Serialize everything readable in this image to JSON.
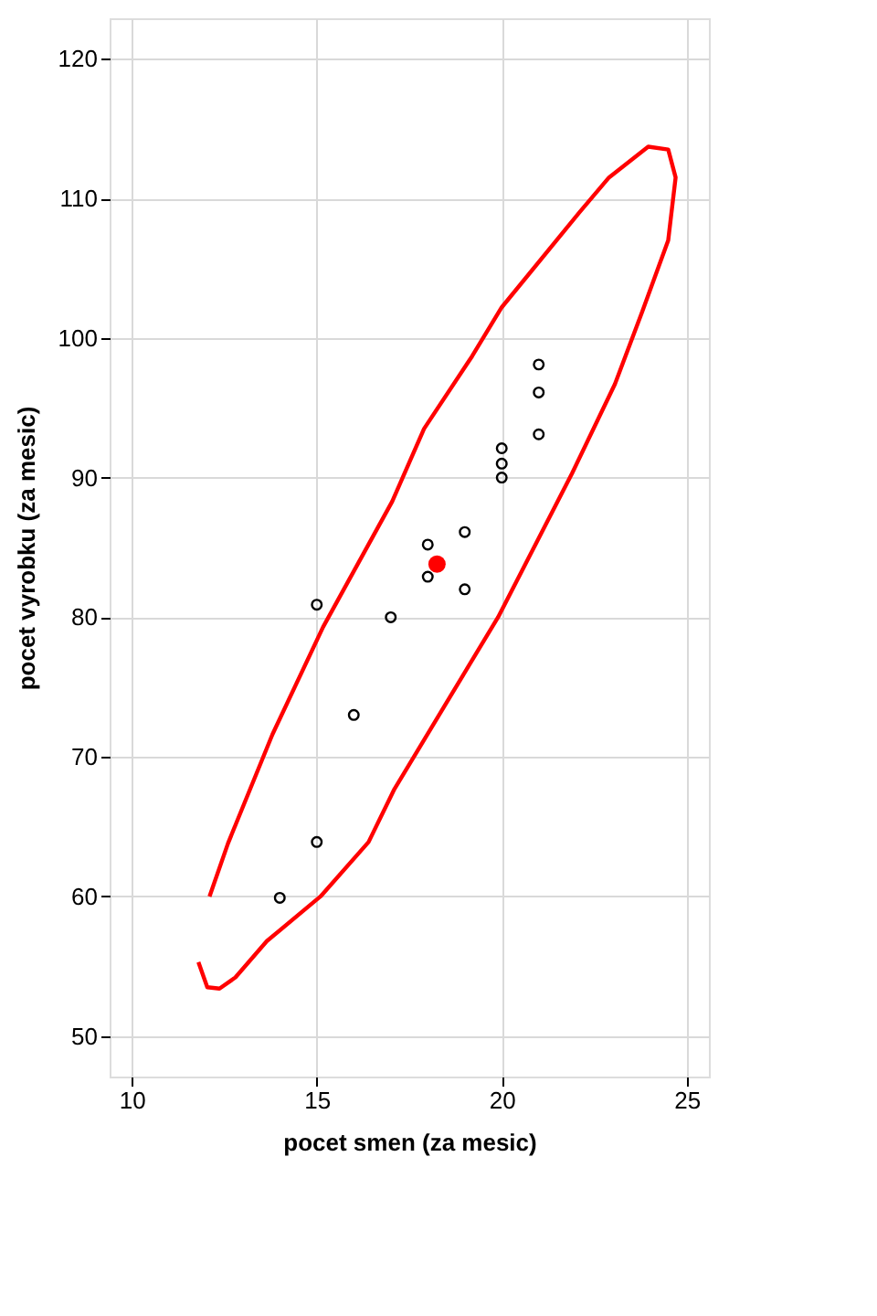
{
  "chart_data": {
    "type": "scatter",
    "xlabel": "pocet smen (za mesic)",
    "ylabel": "pocet vyrobku (za mesic)",
    "xlim": [
      9.4,
      25.6
    ],
    "ylim": [
      47.1,
      122.9
    ],
    "xticks": [
      10,
      15,
      20,
      25
    ],
    "yticks": [
      50,
      60,
      70,
      80,
      90,
      100,
      110,
      120
    ],
    "grid": true,
    "marker": "circle",
    "series": [
      {
        "type": "scatter",
        "color": "#000000",
        "x": [
          21,
          21,
          21,
          20,
          20,
          20,
          19,
          19,
          18,
          18,
          17,
          16,
          15,
          15,
          14
        ],
        "values": [
          98.1,
          96.1,
          93.1,
          92.1,
          91.0,
          90.0,
          86.1,
          82.0,
          85.2,
          82.9,
          80.0,
          73.0,
          80.9,
          63.9,
          59.9
        ]
      },
      {
        "type": "scatter",
        "color": "#ff0000",
        "x": [
          18.25
        ],
        "values": [
          83.8
        ]
      },
      {
        "type": "line",
        "marker": "none",
        "color": "#ff0000",
        "x": [
          11.8,
          12.04,
          12.37,
          12.8,
          13.65,
          15.1,
          16.4,
          17.1,
          19.9,
          21.9,
          23.06,
          23.8,
          24.5,
          24.7,
          24.5,
          23.96,
          22.9,
          22.1,
          20.0,
          19.2,
          17.9,
          17.04,
          15.17,
          13.8,
          12.6,
          12.1
        ],
        "values": [
          55.3,
          53.5,
          53.4,
          54.2,
          56.8,
          60.0,
          63.9,
          67.7,
          80.0,
          90.3,
          96.7,
          101.9,
          107.0,
          111.5,
          113.5,
          113.7,
          111.5,
          109.0,
          102.2,
          98.7,
          93.5,
          88.3,
          79.3,
          71.6,
          63.8,
          60.0
        ]
      }
    ]
  }
}
